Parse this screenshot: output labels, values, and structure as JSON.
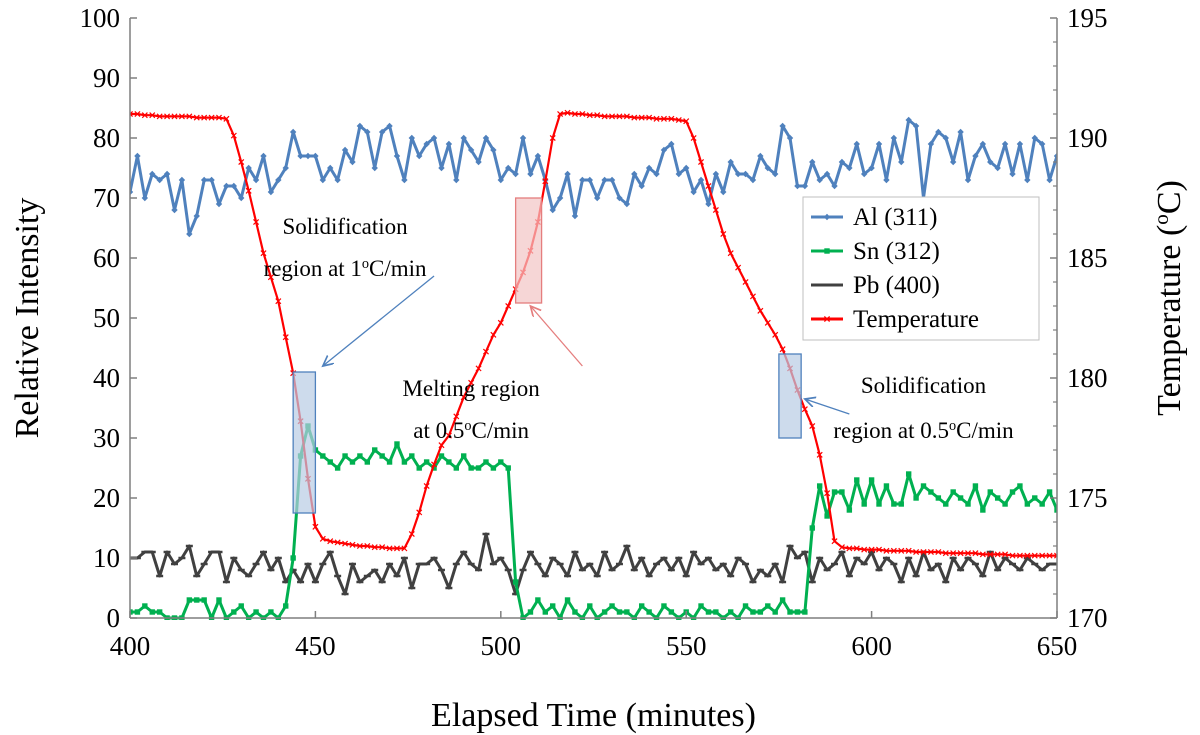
{
  "chart_data": {
    "type": "line",
    "title": "",
    "xlabel": "Elapsed Time (minutes)",
    "ylabel": "Relative Intensity",
    "y2label_parts": [
      "Temperature (",
      "o",
      "C)"
    ],
    "xlim": [
      400,
      650
    ],
    "ylim": [
      0,
      100
    ],
    "y2lim": [
      170,
      195
    ],
    "xticks": [
      400,
      450,
      500,
      550,
      600,
      650
    ],
    "yticks": [
      0,
      10,
      20,
      30,
      40,
      50,
      60,
      70,
      80,
      90,
      100
    ],
    "y2ticks": [
      170,
      175,
      180,
      185,
      190,
      195
    ],
    "grid": false,
    "legend_position": "right",
    "series": [
      {
        "name": "Al (311)",
        "color": "#4f81bd",
        "marker": "diamond",
        "axis": "left",
        "x": [
          400,
          402,
          404,
          406,
          408,
          410,
          412,
          414,
          416,
          418,
          420,
          422,
          424,
          426,
          428,
          430,
          432,
          434,
          436,
          438,
          440,
          442,
          444,
          446,
          448,
          450,
          452,
          454,
          456,
          458,
          460,
          462,
          464,
          466,
          468,
          470,
          472,
          474,
          476,
          478,
          480,
          482,
          484,
          486,
          488,
          490,
          492,
          494,
          496,
          498,
          500,
          502,
          504,
          506,
          508,
          510,
          512,
          514,
          516,
          518,
          520,
          522,
          524,
          526,
          528,
          530,
          532,
          534,
          536,
          538,
          540,
          542,
          544,
          546,
          548,
          550,
          552,
          554,
          556,
          558,
          560,
          562,
          564,
          566,
          568,
          570,
          572,
          574,
          576,
          578,
          580,
          582,
          584,
          586,
          588,
          590,
          592,
          594,
          596,
          598,
          600,
          602,
          604,
          606,
          608,
          610,
          612,
          614,
          616,
          618,
          620,
          622,
          624,
          626,
          628,
          630,
          632,
          634,
          636,
          638,
          640,
          642,
          644,
          646,
          648,
          650
        ],
        "values": [
          71,
          77,
          70,
          74,
          73,
          74,
          68,
          73,
          64,
          67,
          73,
          73,
          69,
          72,
          72,
          70,
          75,
          73,
          77,
          71,
          73,
          75,
          81,
          77,
          77,
          77,
          73,
          75,
          73,
          78,
          76,
          82,
          81,
          75,
          81,
          82,
          77,
          73,
          80,
          77,
          79,
          80,
          75,
          79,
          73,
          80,
          78,
          76,
          80,
          78,
          73,
          75,
          74,
          80,
          74,
          77,
          73,
          68,
          70,
          74,
          67,
          73,
          73,
          70,
          73,
          73,
          70,
          69,
          74,
          72,
          75,
          74,
          78,
          79,
          74,
          75,
          71,
          73,
          69,
          74,
          71,
          76,
          74,
          74,
          73,
          77,
          75,
          74,
          82,
          80,
          72,
          72,
          76,
          73,
          74,
          72,
          76,
          75,
          79,
          74,
          75,
          79,
          73,
          80,
          76,
          83,
          82,
          70,
          79,
          81,
          80,
          76,
          81,
          73,
          77,
          79,
          76,
          75,
          79,
          74,
          79,
          73,
          80,
          79,
          73,
          77
        ]
      },
      {
        "name": "Sn (312)",
        "color": "#00b050",
        "marker": "square",
        "axis": "left",
        "x": [
          400,
          402,
          404,
          406,
          408,
          410,
          412,
          414,
          416,
          418,
          420,
          422,
          424,
          426,
          428,
          430,
          432,
          434,
          436,
          438,
          440,
          442,
          444,
          446,
          448,
          450,
          452,
          454,
          456,
          458,
          460,
          462,
          464,
          466,
          468,
          470,
          472,
          474,
          476,
          478,
          480,
          482,
          484,
          486,
          488,
          490,
          492,
          494,
          496,
          498,
          500,
          502,
          504,
          506,
          508,
          510,
          512,
          514,
          516,
          518,
          520,
          522,
          524,
          526,
          528,
          530,
          532,
          534,
          536,
          538,
          540,
          542,
          544,
          546,
          548,
          550,
          552,
          554,
          556,
          558,
          560,
          562,
          564,
          566,
          568,
          570,
          572,
          574,
          576,
          578,
          580,
          582,
          584,
          586,
          588,
          590,
          592,
          594,
          596,
          598,
          600,
          602,
          604,
          606,
          608,
          610,
          612,
          614,
          616,
          618,
          620,
          622,
          624,
          626,
          628,
          630,
          632,
          634,
          636,
          638,
          640,
          642,
          644,
          646,
          648,
          650
        ],
        "values": [
          1,
          1,
          2,
          1,
          1,
          0,
          0,
          0,
          3,
          3,
          3,
          0,
          3,
          0,
          1,
          2,
          0,
          1,
          0,
          1,
          0,
          2,
          10,
          27,
          32,
          28,
          27,
          26,
          25,
          27,
          26,
          27,
          26,
          28,
          27,
          26,
          29,
          26,
          27,
          25,
          26,
          25,
          27,
          26,
          25,
          27,
          25,
          25,
          26,
          25,
          26,
          25,
          6,
          0,
          1,
          3,
          1,
          2,
          0,
          3,
          1,
          0,
          2,
          0,
          1,
          2,
          1,
          1,
          0,
          2,
          1,
          0,
          2,
          1,
          0,
          1,
          0,
          2,
          1,
          1,
          0,
          1,
          0,
          2,
          1,
          1,
          2,
          1,
          3,
          1,
          1,
          1,
          15,
          22,
          17,
          21,
          21,
          18,
          23,
          19,
          23,
          19,
          22,
          19,
          19,
          24,
          20,
          22,
          21,
          20,
          19,
          21,
          20,
          19,
          22,
          18,
          21,
          20,
          19,
          21,
          22,
          19,
          20,
          19,
          21,
          18
        ]
      },
      {
        "name": "Pb (400)",
        "color": "#404040",
        "marker": "dash",
        "axis": "left",
        "x": [
          400,
          402,
          404,
          406,
          408,
          410,
          412,
          414,
          416,
          418,
          420,
          422,
          424,
          426,
          428,
          430,
          432,
          434,
          436,
          438,
          440,
          442,
          444,
          446,
          448,
          450,
          452,
          454,
          456,
          458,
          460,
          462,
          464,
          466,
          468,
          470,
          472,
          474,
          476,
          478,
          480,
          482,
          484,
          486,
          488,
          490,
          492,
          494,
          496,
          498,
          500,
          502,
          504,
          506,
          508,
          510,
          512,
          514,
          516,
          518,
          520,
          522,
          524,
          526,
          528,
          530,
          532,
          534,
          536,
          538,
          540,
          542,
          544,
          546,
          548,
          550,
          552,
          554,
          556,
          558,
          560,
          562,
          564,
          566,
          568,
          570,
          572,
          574,
          576,
          578,
          580,
          582,
          584,
          586,
          588,
          590,
          592,
          594,
          596,
          598,
          600,
          602,
          604,
          606,
          608,
          610,
          612,
          614,
          616,
          618,
          620,
          622,
          624,
          626,
          628,
          630,
          632,
          634,
          636,
          638,
          640,
          642,
          644,
          646,
          648,
          650
        ],
        "values": [
          10,
          10,
          11,
          11,
          7,
          11,
          9,
          10,
          12,
          7,
          9,
          11,
          11,
          6,
          10,
          8,
          7,
          9,
          11,
          8,
          10,
          6,
          8,
          6,
          9,
          6,
          9,
          11,
          7,
          4,
          9,
          6,
          7,
          8,
          6,
          9,
          7,
          10,
          5,
          9,
          9,
          10,
          8,
          5,
          9,
          11,
          9,
          8,
          14,
          9,
          10,
          8,
          4,
          8,
          11,
          9,
          7,
          10,
          9,
          7,
          11,
          8,
          9,
          7,
          11,
          8,
          9,
          12,
          8,
          10,
          7,
          9,
          10,
          8,
          10,
          7,
          11,
          9,
          10,
          8,
          9,
          7,
          10,
          9,
          6,
          8,
          7,
          9,
          6,
          12,
          10,
          11,
          6,
          10,
          8,
          9,
          11,
          7,
          10,
          9,
          11,
          8,
          10,
          9,
          6,
          10,
          7,
          11,
          8,
          9,
          6,
          10,
          8,
          10,
          9,
          7,
          11,
          8,
          10,
          9,
          8,
          10,
          9,
          8,
          9,
          9
        ]
      },
      {
        "name": "Temperature",
        "color": "#ff0000",
        "marker": "cross",
        "axis": "right",
        "x": [
          400,
          402,
          404,
          406,
          408,
          410,
          412,
          414,
          416,
          418,
          420,
          422,
          424,
          426,
          428,
          430,
          432,
          434,
          436,
          438,
          440,
          442,
          444,
          446,
          448,
          450,
          452,
          454,
          456,
          458,
          460,
          462,
          464,
          466,
          468,
          470,
          472,
          474,
          476,
          478,
          480,
          482,
          484,
          486,
          488,
          490,
          492,
          494,
          496,
          498,
          500,
          502,
          504,
          506,
          508,
          510,
          512,
          514,
          516,
          518,
          520,
          522,
          524,
          526,
          528,
          530,
          532,
          534,
          536,
          538,
          540,
          542,
          544,
          546,
          548,
          550,
          552,
          554,
          556,
          558,
          560,
          562,
          564,
          566,
          568,
          570,
          572,
          574,
          576,
          578,
          580,
          582,
          584,
          586,
          588,
          590,
          592,
          594,
          596,
          598,
          600,
          602,
          604,
          606,
          608,
          610,
          612,
          614,
          616,
          618,
          620,
          622,
          624,
          626,
          628,
          630,
          632,
          634,
          636,
          638,
          640,
          642,
          644,
          646,
          648,
          650
        ],
        "values": [
          191,
          191,
          190.95,
          190.95,
          190.9,
          190.9,
          190.9,
          190.9,
          190.9,
          190.85,
          190.85,
          190.85,
          190.85,
          190.8,
          190.1,
          189.0,
          187.8,
          186.5,
          185.2,
          184.2,
          183.2,
          181.7,
          180.2,
          178.2,
          175.8,
          173.8,
          173.3,
          173.2,
          173.15,
          173.1,
          173.05,
          173.0,
          173.0,
          172.95,
          172.95,
          172.9,
          172.9,
          172.9,
          173.5,
          174.4,
          175.5,
          176.4,
          177.2,
          177.6,
          178.4,
          179.2,
          179.8,
          180.4,
          181.1,
          181.8,
          182.3,
          183.0,
          183.7,
          184.4,
          185.3,
          186.5,
          188.2,
          190.0,
          191.0,
          191.05,
          191.0,
          191.0,
          190.95,
          190.95,
          190.9,
          190.9,
          190.9,
          190.9,
          190.85,
          190.85,
          190.85,
          190.8,
          190.8,
          190.8,
          190.75,
          190.7,
          190.0,
          189.0,
          188.0,
          187.0,
          186.0,
          185.2,
          184.6,
          184.0,
          183.4,
          182.8,
          182.3,
          181.8,
          181.2,
          180.4,
          179.5,
          178.7,
          178.0,
          176.8,
          175.2,
          173.2,
          172.95,
          172.9,
          172.9,
          172.85,
          172.85,
          172.85,
          172.8,
          172.8,
          172.8,
          172.8,
          172.75,
          172.75,
          172.75,
          172.75,
          172.7,
          172.7,
          172.7,
          172.7,
          172.7,
          172.65,
          172.65,
          172.65,
          172.65,
          172.6,
          172.6,
          172.6,
          172.6,
          172.6,
          172.6,
          172.6
        ]
      }
    ],
    "annotations": [
      {
        "name": "solidification-1",
        "lines": [
          [
            "Solidification"
          ],
          [
            "region at 1",
            "o",
            "C/min"
          ]
        ],
        "box": {
          "x0": 444,
          "x1": 450,
          "y0": 17.5,
          "y1": 41
        },
        "fill": "#b8cce4",
        "stroke": "#4f81bd",
        "text_x": 458,
        "text_y": [
          64,
          57
        ],
        "arrow_from": [
          482,
          57
        ],
        "arrow_to": [
          452,
          42
        ]
      },
      {
        "name": "melting",
        "lines": [
          [
            "Melting region"
          ],
          [
            "at 0.5",
            "o",
            "C/min"
          ]
        ],
        "box": {
          "x0": 504,
          "x1": 511,
          "y0": 52.5,
          "y1": 70
        },
        "fill": "#f2c4c4",
        "stroke": "#e57e7e",
        "text_x": 492,
        "text_y": [
          37,
          30
        ],
        "arrow_from": [
          522,
          42
        ],
        "arrow_to": [
          508,
          52
        ]
      },
      {
        "name": "solidification-2",
        "lines": [
          [
            "Solidification"
          ],
          [
            "region at 0.5",
            "o",
            "C/min"
          ]
        ],
        "box": {
          "x0": 575,
          "x1": 581,
          "y0": 30,
          "y1": 44
        },
        "fill": "#b8cce4",
        "stroke": "#4f81bd",
        "text_x": 614,
        "text_y": [
          37.5,
          30
        ],
        "arrow_from": [
          594,
          34
        ],
        "arrow_to": [
          582,
          36.5
        ]
      }
    ]
  }
}
